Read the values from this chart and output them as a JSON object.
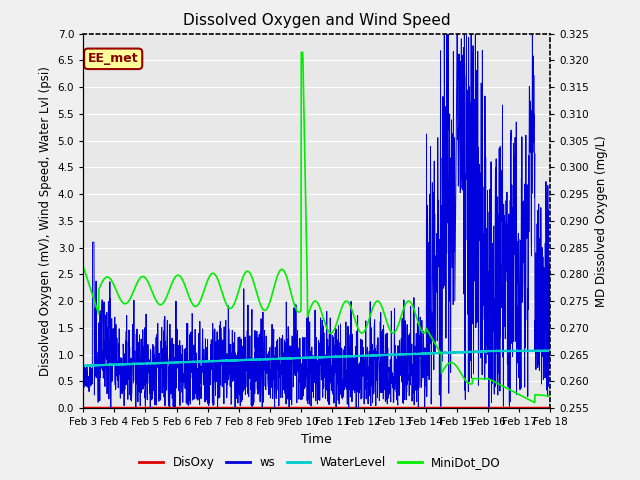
{
  "title": "Dissolved Oxygen and Wind Speed",
  "xlabel": "Time",
  "ylabel_left": "Dissolved Oxygen (mV), Wind Speed, Water Lvl (psi)",
  "ylabel_right": "MD Dissolved Oxygen (mg/L)",
  "ylim_left": [
    0.0,
    7.0
  ],
  "ylim_right": [
    0.255,
    0.325
  ],
  "plot_bg_color": "#e8e8e8",
  "fig_bg_color": "#f0f0f0",
  "grid_color": "#ffffff",
  "annotation_text": "EE_met",
  "annotation_box_color": "#ffff99",
  "annotation_box_edge": "#990000",
  "x_tick_labels": [
    "Feb 3",
    "Feb 4",
    "Feb 5",
    "Feb 6",
    "Feb 7",
    "Feb 8",
    "Feb 9",
    "Feb 10",
    "Feb 11",
    "Feb 12",
    "Feb 13",
    "Feb 14",
    "Feb 15",
    "Feb 16",
    "Feb 17",
    "Feb 18"
  ],
  "DisOxy_color": "#dd0000",
  "ws_color": "#0000dd",
  "WaterLevel_color": "#00cccc",
  "MiniDot_DO_color": "#00ee00",
  "yticks_left": [
    0.0,
    0.5,
    1.0,
    1.5,
    2.0,
    2.5,
    3.0,
    3.5,
    4.0,
    4.5,
    5.0,
    5.5,
    6.0,
    6.5,
    7.0
  ],
  "yticks_right": [
    0.255,
    0.26,
    0.265,
    0.27,
    0.275,
    0.28,
    0.285,
    0.29,
    0.295,
    0.3,
    0.305,
    0.31,
    0.315,
    0.32,
    0.325
  ],
  "figsize": [
    6.4,
    4.8
  ],
  "dpi": 100
}
